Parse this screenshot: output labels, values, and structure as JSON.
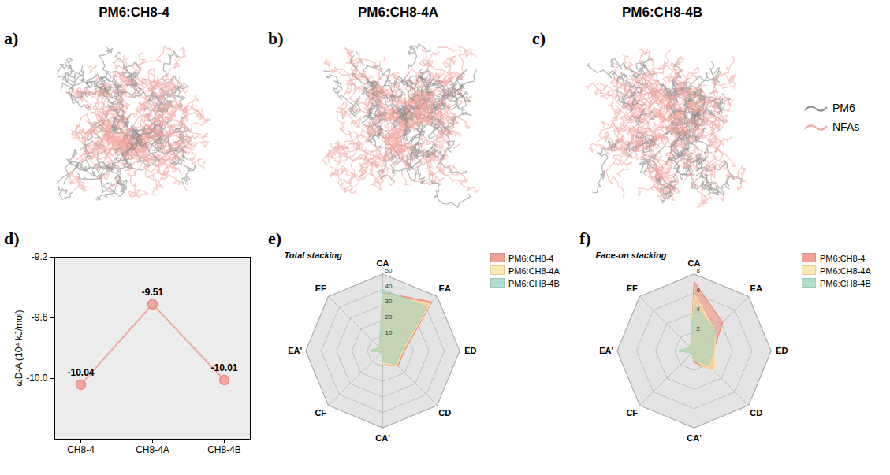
{
  "panels": [
    {
      "letter": "a)",
      "title": "PM6:CH8-4"
    },
    {
      "letter": "b)",
      "title": "PM6:CH8-4A"
    },
    {
      "letter": "c)",
      "title": "PM6:CH8-4B"
    }
  ],
  "panel_legend": [
    {
      "name": "PM6",
      "color": "#8c8c8c"
    },
    {
      "name": "NFAs",
      "color": "#f4a6a0"
    }
  ],
  "chart_data": [
    {
      "letter": "d)",
      "type": "line",
      "categories": [
        "CH8-4",
        "CH8-4A",
        "CH8-4B"
      ],
      "values": [
        -10.04,
        -9.51,
        -10.01
      ],
      "color": "#f4a6a0",
      "marker": "circle",
      "data_labels": true,
      "ylabel": "ωD-A (10⁴ kJ/mol)",
      "ylim": [
        -10.4,
        -9.2
      ],
      "yticks": [
        -9.2,
        -9.6,
        {
          "value": -10,
          "label": "-10.0"
        }
      ]
    },
    {
      "letter": "e)",
      "type": "radar",
      "subtitle": "Total stacking",
      "categories": [
        "CA",
        "EA",
        "ED",
        "CD",
        "CA'",
        "CF",
        "EA'",
        "EF"
      ],
      "series": [
        {
          "name": "PM6:CH8-4",
          "color": "#f08c78",
          "values": [
            38,
            45,
            14,
            14,
            8,
            1,
            8,
            3
          ]
        },
        {
          "name": "PM6:CH8-4A",
          "color": "#fde3a0",
          "values": [
            37,
            43,
            13,
            13,
            8,
            1,
            8,
            3
          ]
        },
        {
          "name": "PM6:CH8-4B",
          "color": "#9fd8c0",
          "values": [
            40,
            40,
            12,
            12,
            7,
            1,
            9,
            3
          ]
        }
      ],
      "ylim": [
        0,
        50
      ],
      "yticks": [
        10,
        20,
        30,
        40,
        50
      ],
      "legend": "top-right"
    },
    {
      "letter": "f)",
      "type": "radar",
      "subtitle": "Face-on stacking",
      "categories": [
        "CA",
        "EA",
        "ED",
        "CD",
        "CA'",
        "CF",
        "EA'",
        "EF"
      ],
      "series": [
        {
          "name": "PM6:CH8-4",
          "color": "#f08c78",
          "values": [
            7.2,
            4.2,
            2.0,
            2.8,
            1.2,
            0.3,
            1.5,
            0.5
          ]
        },
        {
          "name": "PM6:CH8-4A",
          "color": "#fde3a0",
          "values": [
            6.0,
            3.0,
            2.2,
            3.0,
            1.0,
            0.3,
            1.5,
            0.5
          ]
        },
        {
          "name": "PM6:CH8-4B",
          "color": "#9fd8c0",
          "values": [
            4.8,
            3.0,
            2.0,
            2.0,
            1.0,
            0.3,
            1.8,
            0.5
          ]
        }
      ],
      "ylim": [
        0,
        8
      ],
      "yticks": [
        2,
        4,
        6,
        8
      ],
      "legend": "top-right"
    }
  ]
}
